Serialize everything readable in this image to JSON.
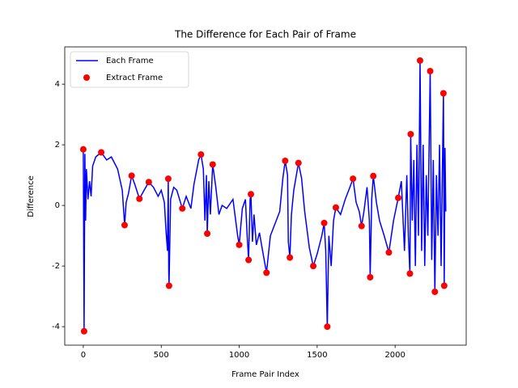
{
  "chart_data": {
    "type": "line",
    "title": "The Difference for Each Pair of Frame",
    "xlabel": "Frame Pair Index",
    "ylabel": "Difference",
    "xlim": [
      -119,
      2456
    ],
    "ylim": [
      -4.61,
      5.23
    ],
    "xticks": [
      0,
      500,
      1000,
      1500,
      2000
    ],
    "yticks": [
      -4,
      -2,
      0,
      2,
      4
    ],
    "legend": "upper left",
    "series": [
      {
        "name": "Each Frame",
        "type": "line",
        "color": "#0000ff",
        "x": [
          0,
          5,
          10,
          15,
          20,
          30,
          40,
          50,
          60,
          80,
          115,
          150,
          180,
          220,
          250,
          265,
          275,
          290,
          310,
          330,
          360,
          390,
          420,
          450,
          480,
          500,
          520,
          530,
          540,
          545,
          548,
          550,
          560,
          580,
          600,
          635,
          660,
          690,
          710,
          740,
          755,
          770,
          780,
          790,
          795,
          805,
          815,
          830,
          850,
          870,
          890,
          920,
          960,
          990,
          1000,
          1020,
          1040,
          1050,
          1060,
          1070,
          1075,
          1085,
          1095,
          1110,
          1130,
          1150,
          1175,
          1200,
          1230,
          1260,
          1280,
          1295,
          1310,
          1315,
          1325,
          1335,
          1350,
          1380,
          1400,
          1420,
          1450,
          1475,
          1500,
          1530,
          1545,
          1555,
          1565,
          1575,
          1590,
          1605,
          1620,
          1650,
          1680,
          1710,
          1730,
          1750,
          1770,
          1785,
          1800,
          1820,
          1835,
          1840,
          1850,
          1860,
          1880,
          1900,
          1930,
          1960,
          1990,
          2020,
          2040,
          2060,
          2075,
          2085,
          2095,
          2100,
          2110,
          2120,
          2130,
          2140,
          2150,
          2160,
          2170,
          2180,
          2190,
          2200,
          2210,
          2225,
          2235,
          2245,
          2255,
          2265,
          2275,
          2285,
          2295,
          2310,
          2315,
          2320,
          2325
        ],
        "values": [
          1.85,
          -4.15,
          1.7,
          -0.5,
          1.2,
          0.2,
          0.8,
          0.3,
          1.3,
          1.6,
          1.75,
          1.5,
          1.6,
          1.2,
          0.5,
          -0.65,
          0.1,
          0.4,
          0.98,
          0.7,
          0.22,
          0.5,
          0.77,
          0.6,
          0.3,
          0.5,
          0.1,
          -0.8,
          -1.5,
          0.88,
          -2.2,
          -2.65,
          0.2,
          0.6,
          0.5,
          -0.1,
          0.3,
          -0.1,
          0.7,
          1.5,
          1.68,
          1.2,
          -0.5,
          1.0,
          -0.93,
          0.8,
          -0.3,
          1.35,
          0.6,
          -0.3,
          0,
          -0.1,
          0.2,
          -1.0,
          -1.3,
          -0.1,
          0.2,
          -0.9,
          -1.8,
          0.2,
          0.37,
          -1.2,
          -0.3,
          -1.3,
          -0.9,
          -1.5,
          -2.22,
          -1.0,
          -0.6,
          -0.2,
          0.9,
          1.47,
          1.0,
          -1.2,
          -1.72,
          -0.3,
          0.5,
          1.4,
          0.9,
          -0.2,
          -1.4,
          -2.0,
          -1.6,
          -1.0,
          -0.58,
          -1.5,
          -4.0,
          -1.0,
          -2.0,
          -0.5,
          -0.07,
          -0.3,
          0.2,
          0.6,
          0.88,
          0.1,
          -0.2,
          -0.68,
          -0.2,
          0.6,
          -0.5,
          -2.37,
          0.2,
          0.97,
          0.1,
          -0.5,
          -1.0,
          -1.55,
          -0.5,
          0.25,
          0.8,
          -1.5,
          1.0,
          -1.0,
          -2.25,
          2.35,
          -0.5,
          1.5,
          -2.0,
          2.0,
          -1.0,
          4.78,
          -1.5,
          2.0,
          -2.0,
          1.0,
          -1.0,
          4.43,
          -1.8,
          1.5,
          -2.85,
          1.0,
          -1.0,
          2.0,
          -2.0,
          3.7,
          -2.65,
          1.9,
          -0.2
        ]
      },
      {
        "name": "Extract Frame",
        "type": "scatter",
        "color": "#ff0000",
        "x": [
          0,
          5,
          115,
          265,
          310,
          360,
          420,
          545,
          550,
          635,
          755,
          795,
          830,
          1000,
          1060,
          1075,
          1175,
          1295,
          1325,
          1380,
          1475,
          1545,
          1565,
          1620,
          1730,
          1785,
          1840,
          1860,
          1960,
          2020,
          2095,
          2100,
          2160,
          2225,
          2255,
          2310,
          2315
        ],
        "values": [
          1.85,
          -4.15,
          1.75,
          -0.65,
          0.98,
          0.22,
          0.77,
          0.88,
          -2.65,
          -0.1,
          1.68,
          -0.93,
          1.35,
          -1.3,
          -1.8,
          0.37,
          -2.22,
          1.47,
          -1.72,
          1.4,
          -2.0,
          -0.58,
          -4.0,
          -0.07,
          0.88,
          -0.68,
          -2.37,
          0.97,
          -1.55,
          0.25,
          -2.25,
          2.35,
          4.78,
          4.43,
          -2.85,
          3.7,
          -2.65
        ]
      }
    ]
  }
}
